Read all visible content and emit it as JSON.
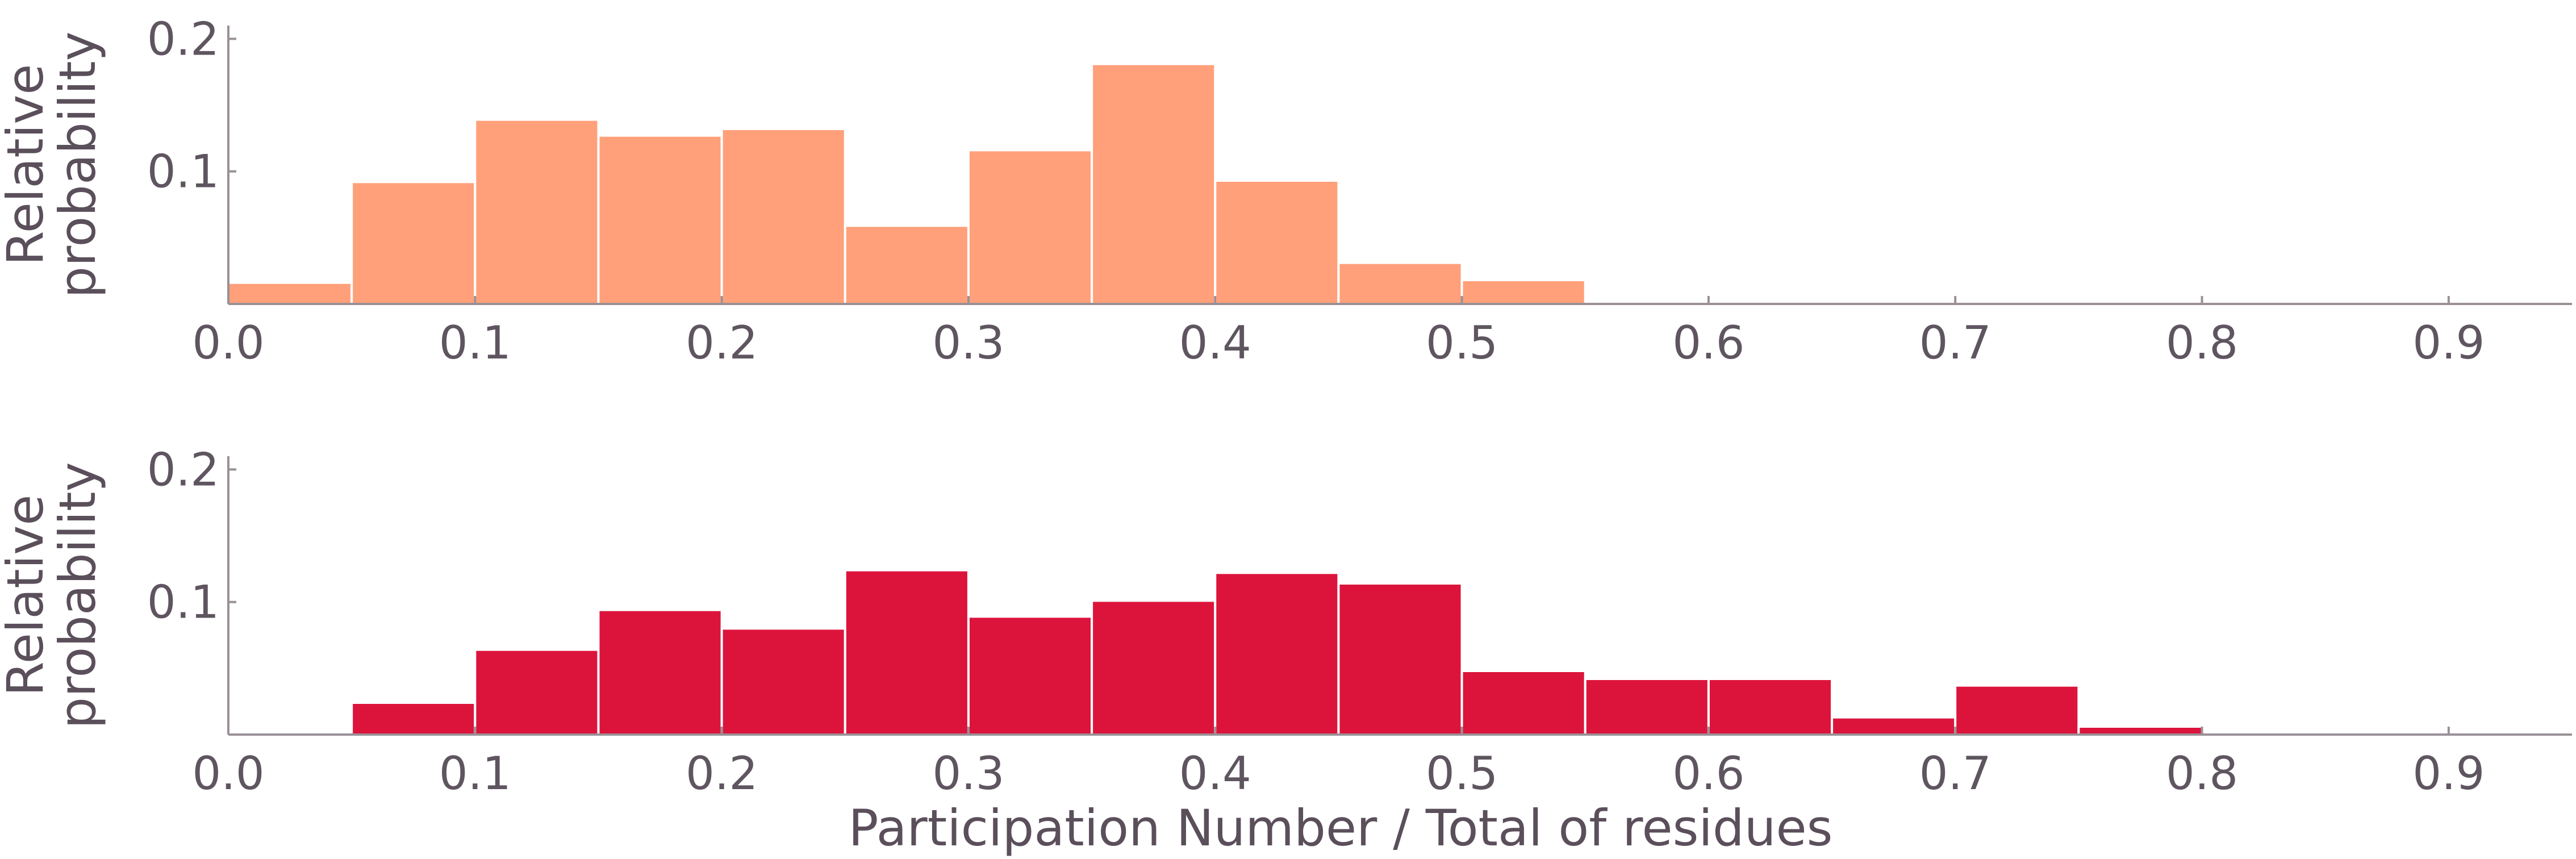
{
  "chart_data": [
    {
      "type": "bar",
      "panel": "top",
      "color": "#FFA07A",
      "bin_width": 0.05,
      "bin_starts": [
        0.0,
        0.05,
        0.1,
        0.15,
        0.2,
        0.25,
        0.3,
        0.35,
        0.4,
        0.45,
        0.5
      ],
      "values": [
        0.016,
        0.092,
        0.139,
        0.127,
        0.132,
        0.059,
        0.116,
        0.181,
        0.093,
        0.031,
        0.018
      ],
      "ylabel": "Relative probability",
      "xlim": [
        0.0,
        0.95
      ],
      "ylim": [
        0.0,
        0.21
      ],
      "xticks": [
        "0.0",
        "0.1",
        "0.2",
        "0.3",
        "0.4",
        "0.5",
        "0.6",
        "0.7",
        "0.8",
        "0.9"
      ],
      "yticks": [
        "0.1",
        "0.2"
      ],
      "grid": false,
      "legend": "none"
    },
    {
      "type": "bar",
      "panel": "bottom",
      "color": "#DC143C",
      "bin_width": 0.05,
      "bin_starts": [
        0.05,
        0.1,
        0.15,
        0.2,
        0.25,
        0.3,
        0.35,
        0.4,
        0.45,
        0.5,
        0.55,
        0.6,
        0.65,
        0.7,
        0.75
      ],
      "values": [
        0.024,
        0.064,
        0.094,
        0.08,
        0.124,
        0.089,
        0.101,
        0.122,
        0.114,
        0.048,
        0.042,
        0.042,
        0.013,
        0.037,
        0.006
      ],
      "ylabel": "Relative probability",
      "xlabel": "Participation Number / Total of residues",
      "xlim": [
        0.0,
        0.95
      ],
      "ylim": [
        0.0,
        0.21
      ],
      "xticks": [
        "0.0",
        "0.1",
        "0.2",
        "0.3",
        "0.4",
        "0.5",
        "0.6",
        "0.7",
        "0.8",
        "0.9"
      ],
      "yticks": [
        "0.1",
        "0.2"
      ],
      "grid": false,
      "legend": "none"
    }
  ]
}
